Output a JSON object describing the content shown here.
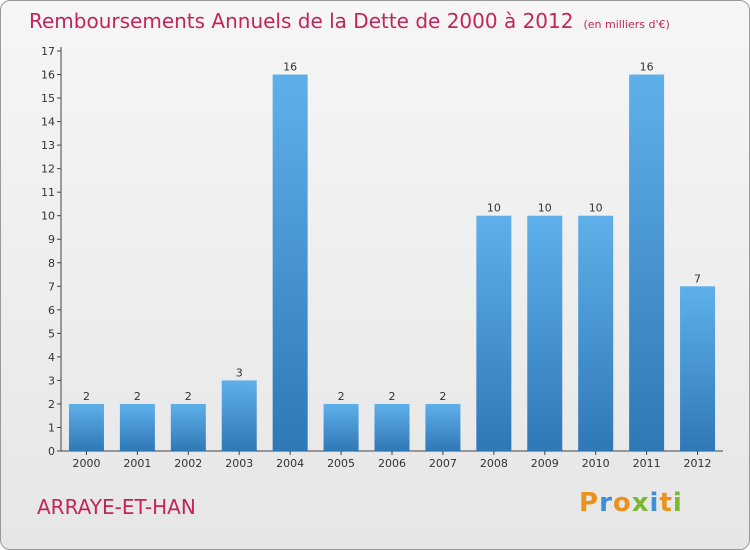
{
  "title": "Remboursements Annuels de la Dette de 2000 à 2012",
  "unit_note": "(en milliers d'€)",
  "commune": "ARRAYE-ET-HAN",
  "logo": {
    "letters": [
      "P",
      "r",
      "o",
      "x",
      "i",
      "t",
      "i"
    ],
    "colors": [
      "#e8931c",
      "#3c8fd8",
      "#e8931c",
      "#7ab82e",
      "#3c8fd8",
      "#e8931c",
      "#7ab82e"
    ]
  },
  "colors": {
    "bar_top": "#5fb0ea",
    "bar_bottom": "#2f78b6",
    "accent": "#c2255c"
  },
  "chart_data": {
    "type": "bar",
    "title": "Remboursements Annuels de la Dette de 2000 à 2012",
    "categories": [
      "2000",
      "2001",
      "2002",
      "2003",
      "2004",
      "2005",
      "2006",
      "2007",
      "2008",
      "2009",
      "2010",
      "2011",
      "2012"
    ],
    "values": [
      2,
      2,
      2,
      3,
      16,
      2,
      2,
      2,
      10,
      10,
      10,
      16,
      7
    ],
    "ylim": [
      0,
      17
    ],
    "yticks": [
      "0",
      "1",
      "2",
      "3",
      "4",
      "5",
      "6",
      "7",
      "8",
      "9",
      "10",
      "11",
      "12",
      "13",
      "14",
      "15",
      "16",
      "17"
    ],
    "grid": false
  }
}
